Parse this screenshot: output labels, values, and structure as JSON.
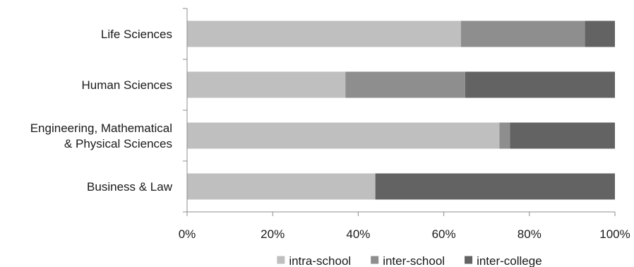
{
  "chart_data": {
    "type": "bar",
    "orientation": "horizontal",
    "stacked": "percent",
    "title": "",
    "xlabel": "",
    "ylabel": "",
    "xlim": [
      0,
      100
    ],
    "x_ticks": [
      "0%",
      "20%",
      "40%",
      "60%",
      "80%",
      "100%"
    ],
    "grid": false,
    "legend_position": "bottom",
    "categories": [
      [
        "Life Sciences"
      ],
      [
        "Human Sciences"
      ],
      [
        "Engineering, Mathematical",
        "& Physical Sciences"
      ],
      [
        "Business & Law"
      ]
    ],
    "series": [
      {
        "name": "intra-school",
        "color": "#bfbfbf",
        "values": [
          64,
          37,
          73,
          44
        ]
      },
      {
        "name": "inter-school",
        "color": "#8e8e8e",
        "values": [
          29,
          28,
          2.5,
          0
        ]
      },
      {
        "name": "inter-college",
        "color": "#636363",
        "values": [
          7,
          35,
          24.5,
          56
        ]
      }
    ]
  }
}
